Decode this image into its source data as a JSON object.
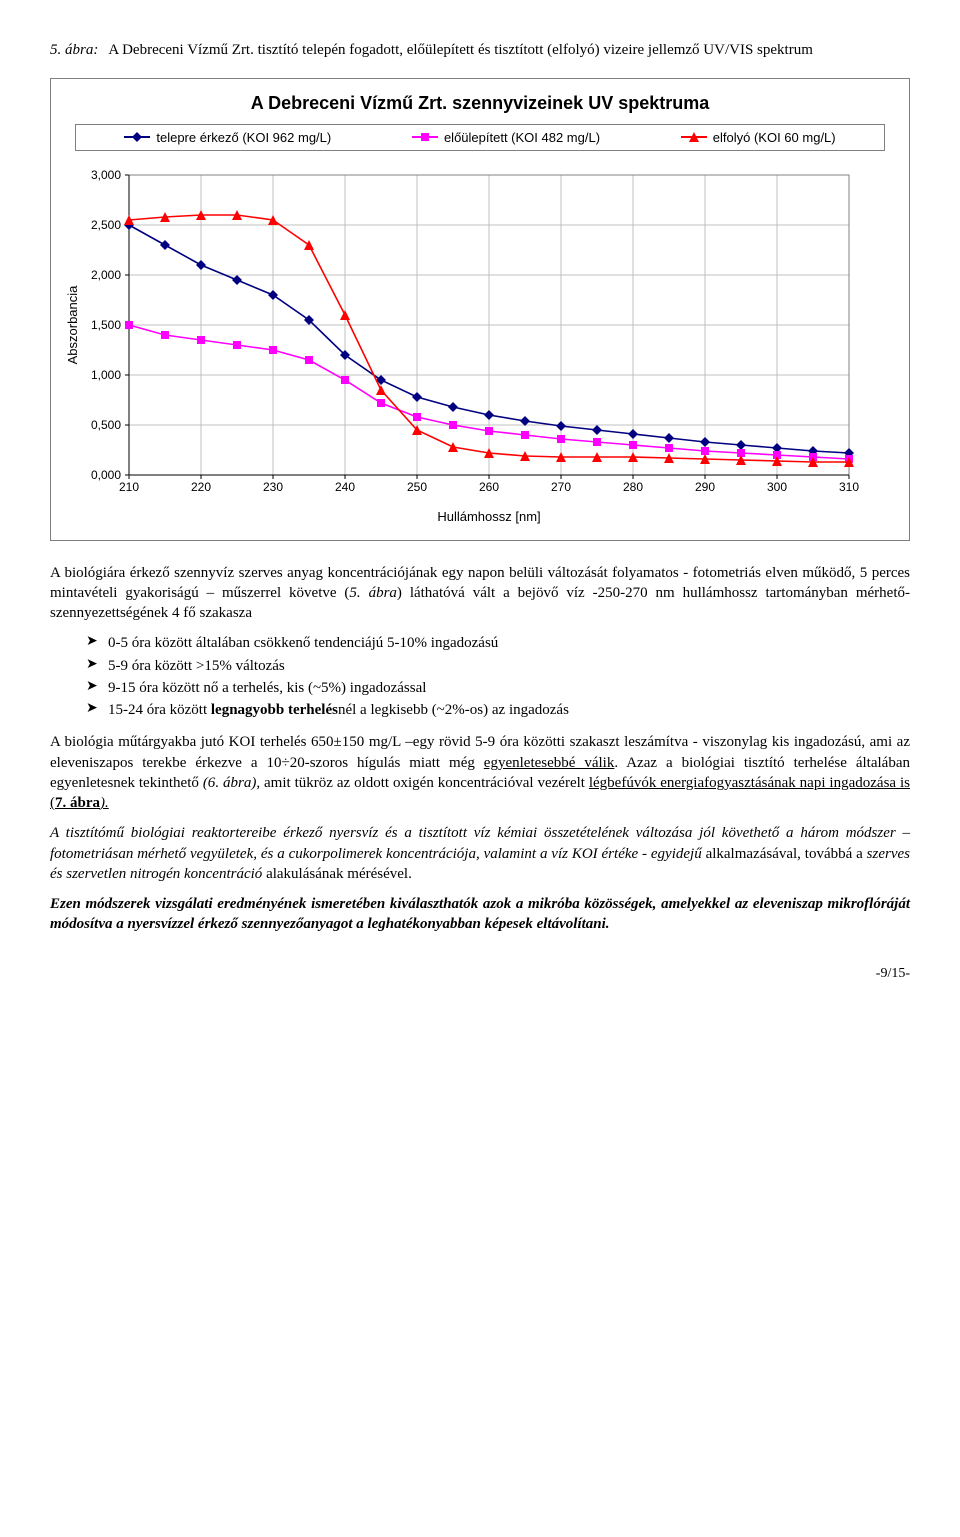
{
  "figure": {
    "label": "5. ábra:",
    "caption": "A Debreceni Vízmű Zrt. tisztító telepén fogadott, előülepített és tisztított (elfolyó) vizeire jellemző UV/VIS spektrum"
  },
  "chart": {
    "type": "line",
    "title": "A Debreceni Vízmű Zrt. szennyvizeinek UV spektruma",
    "ylabel": "Abszorbancia",
    "xlabel": "Hullámhossz [nm]",
    "xlim": [
      210,
      310
    ],
    "ylim": [
      0,
      3.0
    ],
    "xtick_step": 10,
    "ytick_step": 0.5,
    "xticks": [
      "210",
      "220",
      "230",
      "240",
      "250",
      "260",
      "270",
      "280",
      "290",
      "300",
      "310"
    ],
    "yticks": [
      "0,000",
      "0,500",
      "1,000",
      "1,500",
      "2,000",
      "2,500",
      "3,000"
    ],
    "background_color": "#ffffff",
    "grid_color": "#c0c0c0",
    "line_width": 1.6,
    "marker_size": 5,
    "legend": [
      {
        "label": "telepre érkező (KOI 962 mg/L)",
        "color": "#000080",
        "marker": "diamond"
      },
      {
        "label": "előülepített (KOI 482 mg/L)",
        "color": "#ff00ff",
        "marker": "square"
      },
      {
        "label": "elfolyó (KOI 60 mg/L)",
        "color": "#ff0000",
        "marker": "triangle"
      }
    ],
    "series": [
      {
        "name": "telepre",
        "color": "#000080",
        "marker": "diamond",
        "x": [
          210,
          215,
          220,
          225,
          230,
          235,
          240,
          245,
          250,
          255,
          260,
          265,
          270,
          275,
          280,
          285,
          290,
          295,
          300,
          305,
          310
        ],
        "y": [
          2.5,
          2.3,
          2.1,
          1.95,
          1.8,
          1.55,
          1.2,
          0.95,
          0.78,
          0.68,
          0.6,
          0.54,
          0.49,
          0.45,
          0.41,
          0.37,
          0.33,
          0.3,
          0.27,
          0.24,
          0.22
        ]
      },
      {
        "name": "eloulepitett",
        "color": "#ff00ff",
        "marker": "square",
        "x": [
          210,
          215,
          220,
          225,
          230,
          235,
          240,
          245,
          250,
          255,
          260,
          265,
          270,
          275,
          280,
          285,
          290,
          295,
          300,
          305,
          310
        ],
        "y": [
          1.5,
          1.4,
          1.35,
          1.3,
          1.25,
          1.15,
          0.95,
          0.72,
          0.58,
          0.5,
          0.44,
          0.4,
          0.36,
          0.33,
          0.3,
          0.27,
          0.24,
          0.22,
          0.2,
          0.18,
          0.16
        ]
      },
      {
        "name": "elfolyo",
        "color": "#ff0000",
        "marker": "triangle",
        "x": [
          210,
          215,
          220,
          225,
          230,
          235,
          240,
          245,
          250,
          255,
          260,
          265,
          270,
          275,
          280,
          285,
          290,
          295,
          300,
          305,
          310
        ],
        "y": [
          2.55,
          2.58,
          2.6,
          2.6,
          2.55,
          2.3,
          1.6,
          0.85,
          0.45,
          0.28,
          0.22,
          0.19,
          0.18,
          0.18,
          0.18,
          0.17,
          0.16,
          0.15,
          0.14,
          0.13,
          0.13
        ]
      }
    ]
  },
  "para1_a": "A biológiára érkező szennyvíz szerves anyag koncentrációjának egy napon belüli változását folyamatos - fotometriás elven működő, 5 perces mintavételi gyakoriságú – műszerrel követve (",
  "para1_ref": "5. ábra",
  "para1_b": ") láthatóvá vált a bejövő víz -250-270 nm hullámhossz tartományban mérhető- szennyezettségének 4 fő szakasza",
  "bullets": [
    "0-5 óra között általában csökkenő tendenciájú 5-10% ingadozású",
    "5-9 óra között >15% változás",
    "9-15 óra között nő a terhelés, kis (~5%) ingadozással"
  ],
  "bullet4_a": "15-24 óra között ",
  "bullet4_b": "legnagyobb terhelés",
  "bullet4_c": "nél a legkisebb  (~2%-os) az ingadozás",
  "para2_a": "A biológia műtárgyakba jutó KOI terhelés 650±150 mg/L –egy rövid 5-9 óra közötti szakaszt leszámítva - viszonylag kis ingadozású, ami az eleveniszapos terekbe érkezve a 10÷20-szoros hígulás miatt még ",
  "para2_b": "egyenletesebbé válik",
  "para2_c": ".  Azaz a biológiai tisztító terhelése általában egyenletesnek tekinthető ",
  "para2_ref1": "(6",
  "para2_d": ". ábra)",
  "para2_e": ", amit tükröz az oldott oxigén koncentrációval vezérelt ",
  "para2_f": "légbefúvók energiafogyasztásának napi ingadozása is (",
  "para2_ref2": "7. ábra",
  "para2_g": ").",
  "para3_a": "A tisztítómű biológiai reaktortereibe érkező nyersvíz és a tisztított víz kémiai összetételének változása jól követhető a három módszer – fotometriásan mérhető vegyületek, és a cukorpolimerek koncentrációja, valamint a víz KOI értéke - egyidejű ",
  "para3_b": "alkalmazásával, továbbá a",
  "para3_c": " szerves és szervetlen nitrogén koncentráció ",
  "para3_d": "alakulásának mérésével.",
  "para4": "Ezen módszerek vizsgálati eredményének ismeretében kiválaszthatók azok a mikróba közösségek, amelyekkel az eleveniszap mikroflóráját módosítva a nyersvízzel érkező szennyezőanyagot a leghatékonyabban képesek eltávolítani.",
  "page_number": "-9/15-"
}
